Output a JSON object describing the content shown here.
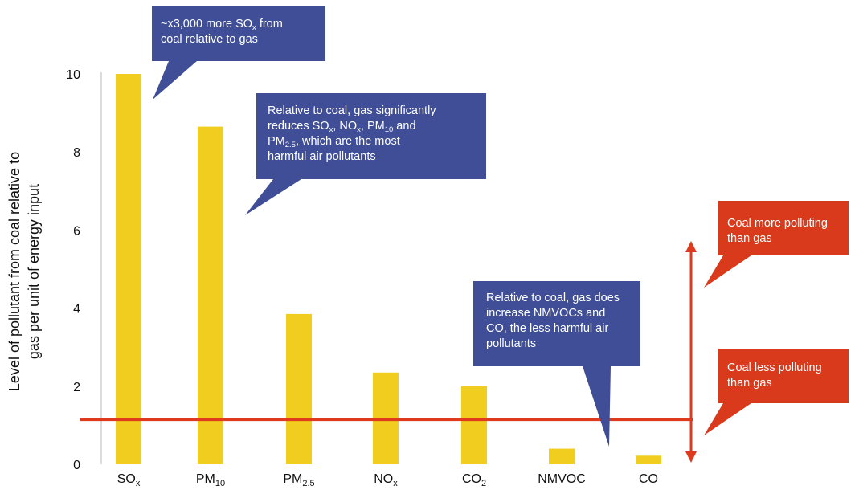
{
  "chart_data": {
    "type": "bar",
    "ylabel_lines": [
      "Level of pollutant from coal relative to",
      "gas per unit of energy input"
    ],
    "ylim": [
      0,
      10
    ],
    "yticks": [
      0,
      2,
      4,
      6,
      8,
      10
    ],
    "grid": false,
    "categories": [
      {
        "base": "SO",
        "sub": "x"
      },
      {
        "base": "PM",
        "sub": "10"
      },
      {
        "base": "PM",
        "sub": "2.5"
      },
      {
        "base": "NO",
        "sub": "x"
      },
      {
        "base": "CO",
        "sub": "2"
      },
      {
        "base": "NMVOC",
        "sub": ""
      },
      {
        "base": "CO",
        "sub": ""
      }
    ],
    "values": [
      10,
      8.65,
      3.85,
      2.35,
      2.0,
      0.4,
      0.22
    ],
    "reference_line": 1.15,
    "colors": {
      "bar": "#F0CD1E",
      "reference_line": "#E03A1E",
      "arrow": "#E03A1E",
      "callout_blue": "#3F4E96",
      "callout_red": "#D93A1C",
      "axis": "#B8B8B8"
    },
    "annotations": [
      {
        "id": "sox-callout",
        "color": "blue",
        "lines": [
          [
            {
              "t": "~x3,000 more SO"
            },
            {
              "t": "x",
              "sub": true
            },
            {
              "t": " from"
            }
          ],
          [
            {
              "t": "coal relative to gas"
            }
          ]
        ]
      },
      {
        "id": "reduction-callout",
        "color": "blue",
        "lines": [
          [
            {
              "t": "Relative to coal, gas significantly"
            }
          ],
          [
            {
              "t": "reduces SO"
            },
            {
              "t": "x",
              "sub": true
            },
            {
              "t": ", NO"
            },
            {
              "t": "x",
              "sub": true
            },
            {
              "t": ", PM"
            },
            {
              "t": "10",
              "sub": true
            },
            {
              "t": " and"
            }
          ],
          [
            {
              "t": "PM"
            },
            {
              "t": "2.5",
              "sub": true
            },
            {
              "t": ", which are the most"
            }
          ],
          [
            {
              "t": "harmful air pollutants"
            }
          ]
        ]
      },
      {
        "id": "increase-callout",
        "color": "blue",
        "lines": [
          [
            {
              "t": "Relative to coal, gas does"
            }
          ],
          [
            {
              "t": "increase NMVOCs and"
            }
          ],
          [
            {
              "t": "CO, the less harmful air"
            }
          ],
          [
            {
              "t": "pollutants"
            }
          ]
        ]
      },
      {
        "id": "more-polluting-callout",
        "color": "red",
        "lines": [
          [
            {
              "t": "Coal more polluting"
            }
          ],
          [
            {
              "t": "than gas"
            }
          ]
        ]
      },
      {
        "id": "less-polluting-callout",
        "color": "red",
        "lines": [
          [
            {
              "t": "Coal less polluting"
            }
          ],
          [
            {
              "t": "than gas"
            }
          ]
        ]
      }
    ]
  }
}
